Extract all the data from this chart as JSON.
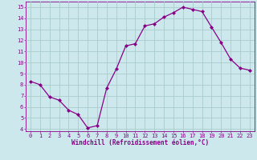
{
  "x": [
    0,
    1,
    2,
    3,
    4,
    5,
    6,
    7,
    8,
    9,
    10,
    11,
    12,
    13,
    14,
    15,
    16,
    17,
    18,
    19,
    20,
    21,
    22,
    23
  ],
  "y": [
    8.3,
    8.0,
    6.9,
    6.6,
    5.7,
    5.3,
    4.1,
    4.3,
    7.7,
    9.4,
    11.5,
    11.7,
    13.3,
    13.5,
    14.1,
    14.5,
    15.0,
    14.8,
    14.6,
    13.2,
    11.8,
    10.3,
    9.5,
    9.3
  ],
  "line_color": "#880088",
  "marker": "D",
  "marker_size": 2.0,
  "bg_color": "#cce8ec",
  "grid_color": "#aacccc",
  "xlabel": "Windchill (Refroidissement éolien,°C)",
  "xlabel_color": "#880088",
  "tick_color": "#880088",
  "ylim": [
    3.8,
    15.5
  ],
  "xlim": [
    -0.5,
    23.5
  ],
  "yticks": [
    4,
    5,
    6,
    7,
    8,
    9,
    10,
    11,
    12,
    13,
    14,
    15
  ],
  "xticks": [
    0,
    1,
    2,
    3,
    4,
    5,
    6,
    7,
    8,
    9,
    10,
    11,
    12,
    13,
    14,
    15,
    16,
    17,
    18,
    19,
    20,
    21,
    22,
    23
  ],
  "tick_fontsize": 5.0,
  "xlabel_fontsize": 5.5,
  "linewidth": 0.9
}
